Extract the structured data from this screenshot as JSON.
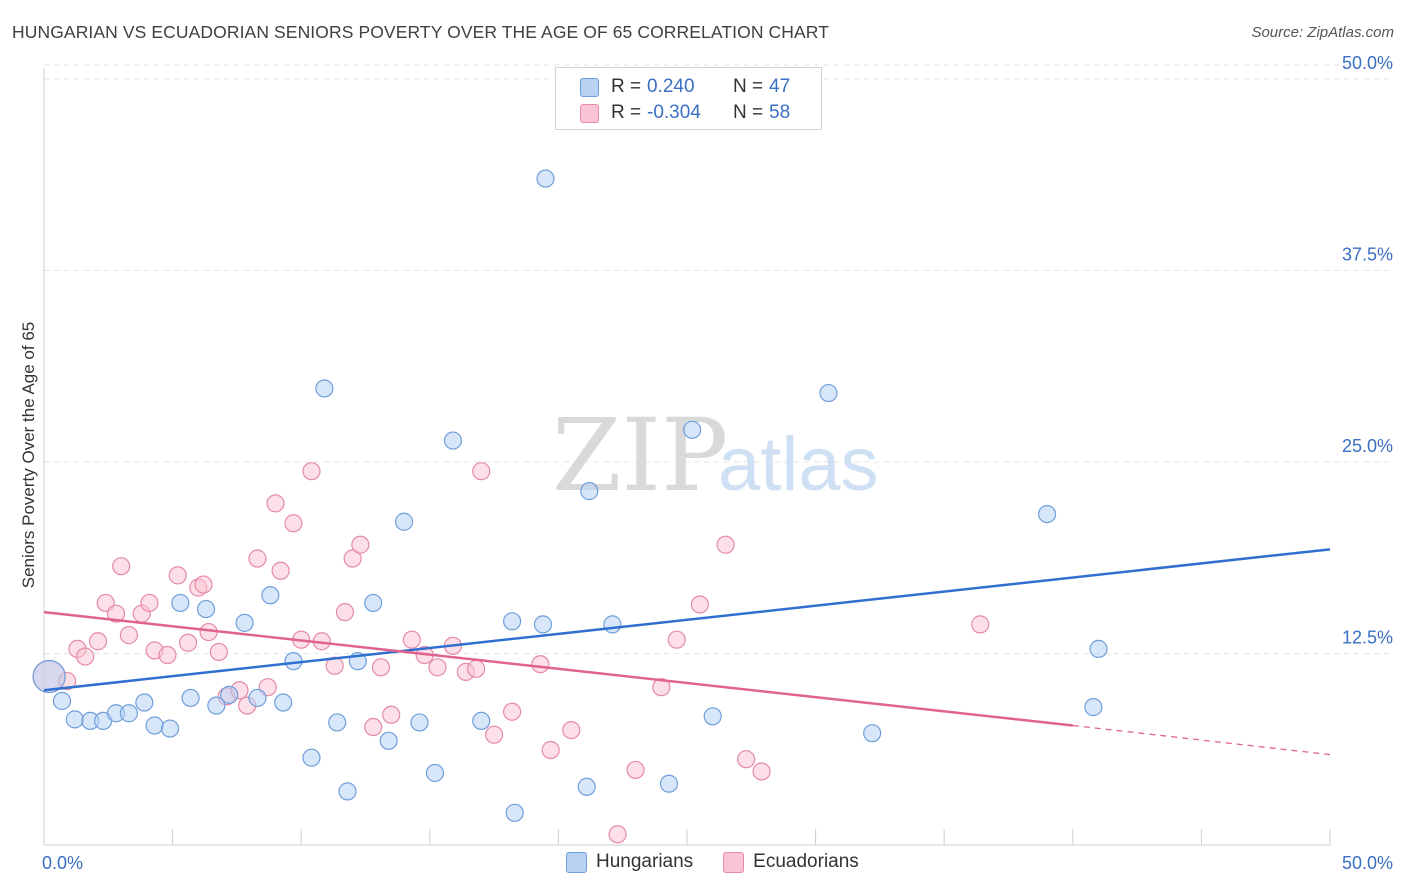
{
  "title": "HUNGARIAN VS ECUADORIAN SENIORS POVERTY OVER THE AGE OF 65 CORRELATION CHART",
  "source": "Source: ZipAtlas.com",
  "watermark": {
    "zip": "ZIP",
    "atlas": "atlas"
  },
  "colors": {
    "blue_fill": "#b8d2f4",
    "blue_stroke": "#6f9fdb",
    "blue_line": "#2f6fcf",
    "pink_fill": "#f9c4d4",
    "pink_stroke": "#e58aa8",
    "pink_line": "#e0638f",
    "axis_label": "#3a6fc4"
  },
  "legend": {
    "rows": [
      {
        "swatch": "blue",
        "r_label": "R =",
        "r_value": "0.240",
        "n_label": "N =",
        "n_value": "47"
      },
      {
        "swatch": "pink",
        "r_label": "R =",
        "r_value": "-0.304",
        "n_label": "N =",
        "n_value": "58"
      }
    ]
  },
  "chart_data": {
    "type": "scatter",
    "title": "HUNGARIAN VS ECUADORIAN SENIORS POVERTY OVER THE AGE OF 65 CORRELATION CHART",
    "xlabel": "",
    "ylabel": "Seniors Poverty Over the Age of 65",
    "xlim": [
      0,
      50
    ],
    "ylim": [
      0,
      51.5
    ],
    "x_tick_labels": [
      "0.0%",
      "50.0%"
    ],
    "y_ticks": [
      12.5,
      25.0,
      37.5,
      50.0
    ],
    "y_tick_labels": [
      "12.5%",
      "25.0%",
      "37.5%",
      "50.0%"
    ],
    "grid": true,
    "legend_position": "top-center",
    "series": [
      {
        "name": "Hungarians",
        "color": "blue",
        "points": [
          [
            0.2,
            11.0
          ],
          [
            0.7,
            9.4
          ],
          [
            1.2,
            8.2
          ],
          [
            1.8,
            8.1
          ],
          [
            2.3,
            8.1
          ],
          [
            2.8,
            8.6
          ],
          [
            3.3,
            8.6
          ],
          [
            3.9,
            9.3
          ],
          [
            4.3,
            7.8
          ],
          [
            4.9,
            7.6
          ],
          [
            5.3,
            15.8
          ],
          [
            5.7,
            9.6
          ],
          [
            6.3,
            15.4
          ],
          [
            6.7,
            9.1
          ],
          [
            7.2,
            9.8
          ],
          [
            7.8,
            14.5
          ],
          [
            8.3,
            9.6
          ],
          [
            8.8,
            16.3
          ],
          [
            9.3,
            9.3
          ],
          [
            9.7,
            12.0
          ],
          [
            10.4,
            5.7
          ],
          [
            10.9,
            29.8
          ],
          [
            11.4,
            8.0
          ],
          [
            11.8,
            3.5
          ],
          [
            12.2,
            12.0
          ],
          [
            12.8,
            15.8
          ],
          [
            13.4,
            6.8
          ],
          [
            14.0,
            21.1
          ],
          [
            14.6,
            8.0
          ],
          [
            15.2,
            4.7
          ],
          [
            15.9,
            26.4
          ],
          [
            17.0,
            8.1
          ],
          [
            18.2,
            14.6
          ],
          [
            18.3,
            2.1
          ],
          [
            19.4,
            14.4
          ],
          [
            19.5,
            43.5
          ],
          [
            21.1,
            3.8
          ],
          [
            21.2,
            23.1
          ],
          [
            22.1,
            14.4
          ],
          [
            24.3,
            4.0
          ],
          [
            25.2,
            27.1
          ],
          [
            26.0,
            8.4
          ],
          [
            30.5,
            29.5
          ],
          [
            32.2,
            7.3
          ],
          [
            39.0,
            21.6
          ],
          [
            40.8,
            9.0
          ],
          [
            41.0,
            12.8
          ]
        ]
      },
      {
        "name": "Ecuadorians",
        "color": "pink",
        "points": [
          [
            0.2,
            11.0
          ],
          [
            0.9,
            10.7
          ],
          [
            1.3,
            12.8
          ],
          [
            1.6,
            12.3
          ],
          [
            2.1,
            13.3
          ],
          [
            2.4,
            15.8
          ],
          [
            2.8,
            15.1
          ],
          [
            3.0,
            18.2
          ],
          [
            3.3,
            13.7
          ],
          [
            3.8,
            15.1
          ],
          [
            4.1,
            15.8
          ],
          [
            4.3,
            12.7
          ],
          [
            4.8,
            12.4
          ],
          [
            5.2,
            17.6
          ],
          [
            5.6,
            13.2
          ],
          [
            6.0,
            16.8
          ],
          [
            6.2,
            17.0
          ],
          [
            6.4,
            13.9
          ],
          [
            6.8,
            12.6
          ],
          [
            7.1,
            9.7
          ],
          [
            7.6,
            10.1
          ],
          [
            7.9,
            9.1
          ],
          [
            8.3,
            18.7
          ],
          [
            8.7,
            10.3
          ],
          [
            9.0,
            22.3
          ],
          [
            9.2,
            17.9
          ],
          [
            9.7,
            21.0
          ],
          [
            10.0,
            13.4
          ],
          [
            10.4,
            24.4
          ],
          [
            10.8,
            13.3
          ],
          [
            11.3,
            11.7
          ],
          [
            11.7,
            15.2
          ],
          [
            12.0,
            18.7
          ],
          [
            12.3,
            19.6
          ],
          [
            12.8,
            7.7
          ],
          [
            13.1,
            11.6
          ],
          [
            13.5,
            8.5
          ],
          [
            14.3,
            13.4
          ],
          [
            14.8,
            12.4
          ],
          [
            15.3,
            11.6
          ],
          [
            15.9,
            13.0
          ],
          [
            16.4,
            11.3
          ],
          [
            16.8,
            11.5
          ],
          [
            17.0,
            24.4
          ],
          [
            17.5,
            7.2
          ],
          [
            18.2,
            8.7
          ],
          [
            19.3,
            11.8
          ],
          [
            19.7,
            6.2
          ],
          [
            20.5,
            7.5
          ],
          [
            22.3,
            0.7
          ],
          [
            23.0,
            4.9
          ],
          [
            24.0,
            10.3
          ],
          [
            24.6,
            13.4
          ],
          [
            25.5,
            15.7
          ],
          [
            26.5,
            19.6
          ],
          [
            27.3,
            5.6
          ],
          [
            27.9,
            4.8
          ],
          [
            36.4,
            14.4
          ]
        ]
      }
    ],
    "trend_lines": [
      {
        "series": "Hungarians",
        "x": [
          0,
          50
        ],
        "y": [
          10.1,
          19.3
        ]
      },
      {
        "series": "Ecuadorians",
        "x": [
          0,
          40
        ],
        "y": [
          15.2,
          7.8
        ],
        "dashed_to": [
          50,
          5.9
        ]
      }
    ]
  },
  "bottom_legend": [
    {
      "swatch": "blue",
      "label": "Hungarians"
    },
    {
      "swatch": "pink",
      "label": "Ecuadorians"
    }
  ]
}
